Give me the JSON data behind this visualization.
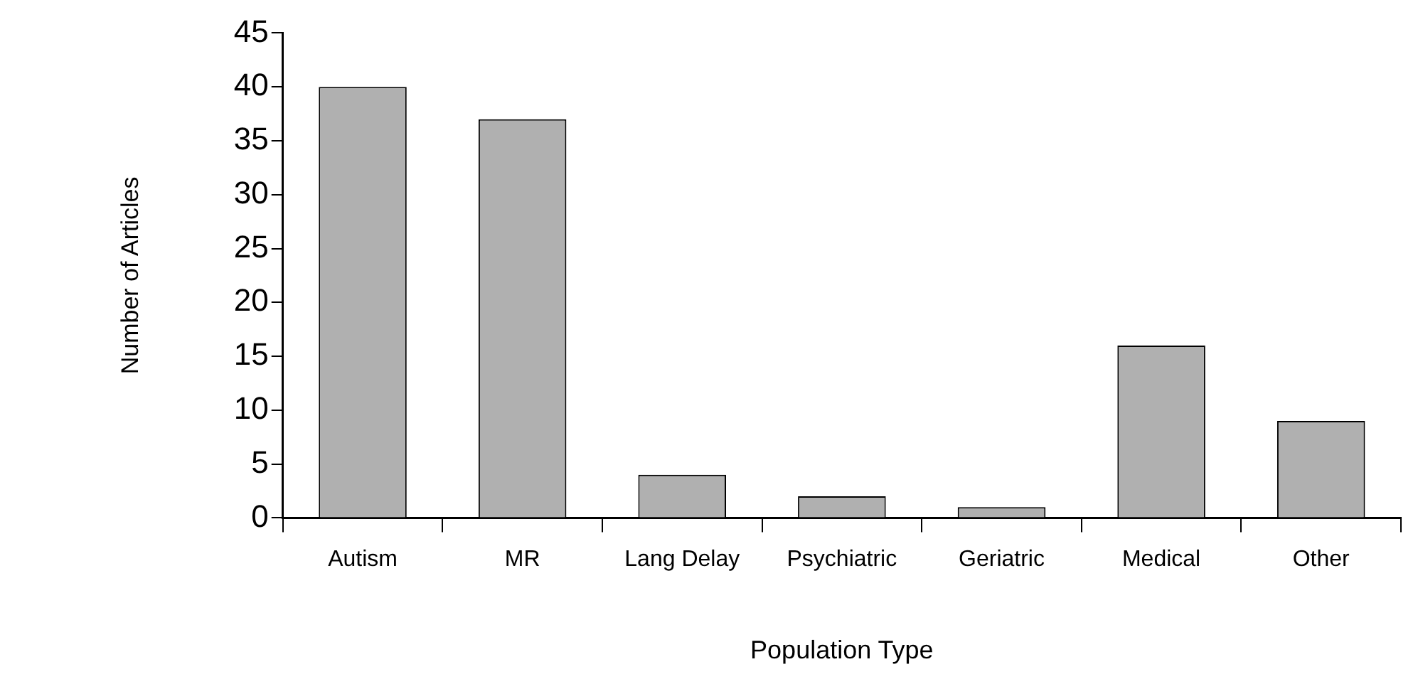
{
  "chart_data": {
    "type": "bar",
    "xlabel": "Population Type",
    "ylabel": "Number of Articles",
    "categories": [
      "Autism",
      "MR",
      "Lang Delay",
      "Psychiatric",
      "Geriatric",
      "Medical",
      "Other"
    ],
    "values": [
      40,
      37,
      4,
      2,
      1,
      16,
      9
    ],
    "color": "#b0b0b0",
    "ylim": [
      0,
      45
    ],
    "yticks": [
      0,
      5,
      10,
      15,
      20,
      25,
      30,
      35,
      40,
      45
    ],
    "grid": false,
    "legend": false
  }
}
